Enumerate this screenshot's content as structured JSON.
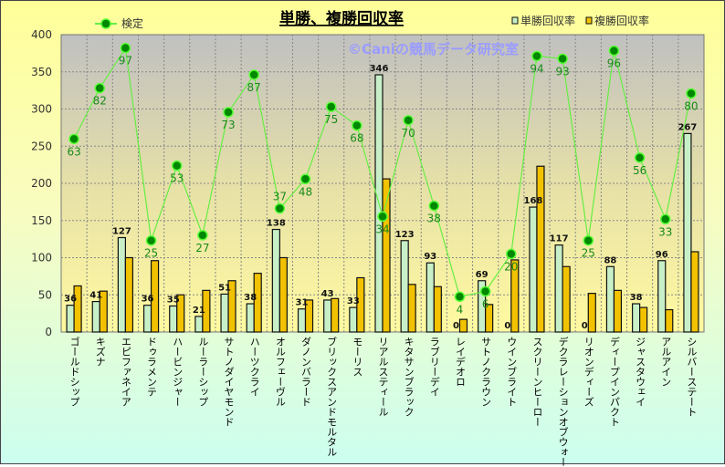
{
  "chart_data": {
    "type": "bar",
    "title": "単勝、複勝回収率",
    "watermark": "©Caniの競馬データ研究室",
    "ylim": [
      0,
      400
    ],
    "yticks": [
      0,
      50,
      100,
      150,
      200,
      250,
      300,
      350,
      400
    ],
    "grid": true,
    "legend_placement": "top",
    "categories": [
      "ゴールドシップ",
      "キズナ",
      "エピファネイア",
      "ドゥラメンテ",
      "ハービンジャー",
      "ルーラーシップ",
      "サトノダイヤモンド",
      "ハーツクライ",
      "オルフェーヴル",
      "ダノンバラード",
      "ブリックスアンドモルタル",
      "モーリス",
      "リアルスティール",
      "キタサンブラック",
      "ラブリーデイ",
      "レイデオロ",
      "サトノクラウン",
      "ウインブライト",
      "スクリーンヒーロー",
      "デクラレーションオブウォー",
      "リオンディーズ",
      "ディープインパクト",
      "ジャスタウェイ",
      "アルアイン",
      "シルバーステート"
    ],
    "series": [
      {
        "name": "単勝回収率",
        "type": "bar",
        "color": "#c8f0c8",
        "values": [
          36,
          41,
          127,
          36,
          35,
          21,
          51,
          38,
          138,
          31,
          43,
          33,
          346,
          123,
          93,
          0,
          69,
          0,
          168,
          117,
          0,
          88,
          38,
          96,
          267
        ]
      },
      {
        "name": "複勝回収率",
        "type": "bar",
        "color": "#f2c200",
        "values": [
          62,
          55,
          100,
          96,
          50,
          56,
          69,
          79,
          100,
          43,
          45,
          73,
          206,
          64,
          61,
          17,
          37,
          97,
          223,
          88,
          52,
          56,
          33,
          30,
          108
        ]
      },
      {
        "name": "検定",
        "type": "line",
        "color": "#66ee44",
        "secondary_axis": true,
        "secondary_range": [
          -9.2,
          102
        ],
        "values": [
          63,
          82,
          97,
          25,
          53,
          27,
          73,
          87,
          37,
          48,
          75,
          68,
          34,
          70,
          38,
          4,
          6,
          20,
          94,
          93,
          25,
          96,
          56,
          33,
          80
        ]
      }
    ]
  }
}
